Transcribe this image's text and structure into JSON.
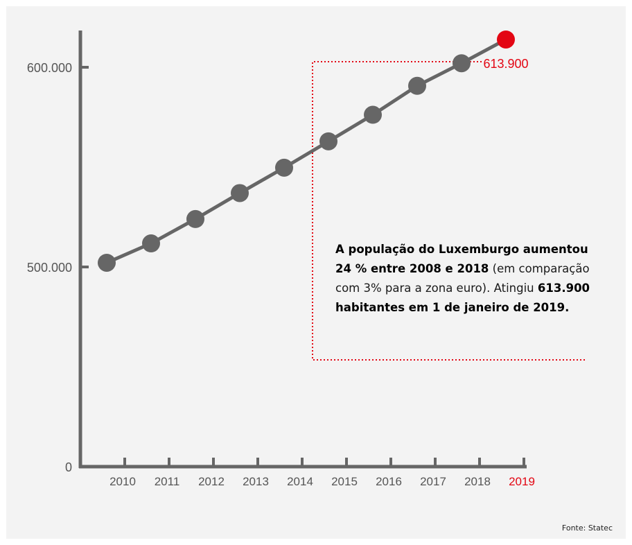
{
  "chart_data": {
    "type": "line",
    "x": [
      "2010",
      "2011",
      "2012",
      "2013",
      "2014",
      "2015",
      "2016",
      "2017",
      "2018",
      "2019"
    ],
    "y": [
      502100,
      511800,
      524000,
      537000,
      549700,
      562900,
      576200,
      590700,
      602000,
      613900
    ],
    "y_tick_values": [
      0,
      500000,
      600000
    ],
    "y_tick_labels": [
      "0",
      "500.000",
      "600.000"
    ],
    "highlight": {
      "label": "613.900",
      "color": "#e30613"
    },
    "grid": false,
    "colors": {
      "line": "#666666",
      "highlight": "#e30613",
      "axis": "#666666",
      "dotted_frame": "#e30613"
    }
  },
  "annotation": {
    "bold1": "A população do Luxemburgo aumentou 24 % entre 2008 e 2018",
    "text": " (em comparação com 3% para a zona euro). Atingiu ",
    "bold2": "613.900 habitantes em 1 de janeiro de 2019."
  },
  "source": "Fonte: Statec"
}
